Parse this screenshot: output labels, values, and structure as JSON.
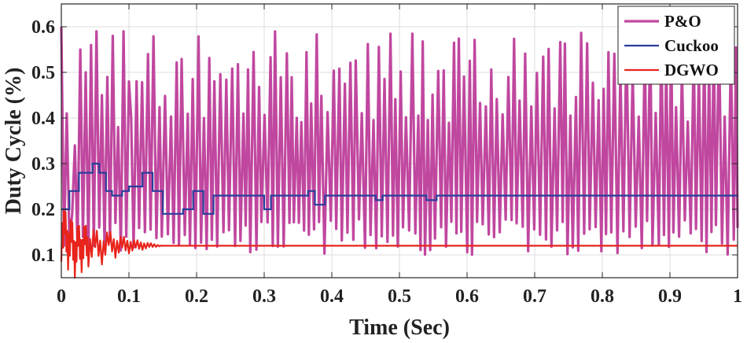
{
  "chart_data": {
    "type": "line",
    "title": "",
    "xlabel": "Time (Sec)",
    "ylabel": "Duty Cycle (%)",
    "xlim": [
      0,
      1
    ],
    "ylim": [
      0.05,
      0.65
    ],
    "x_ticks": [
      0,
      0.1,
      0.2,
      0.3,
      0.4,
      0.5,
      0.6,
      0.7,
      0.8,
      0.9,
      1
    ],
    "x_tick_labels": [
      "0",
      "0.1",
      "0.2",
      "0.3",
      "0.4",
      "0.5",
      "0.6",
      "0.7",
      "0.8",
      "0.9",
      "1"
    ],
    "y_ticks": [
      0.1,
      0.2,
      0.3,
      0.4,
      0.5,
      0.6
    ],
    "y_tick_labels": [
      "0.1",
      "0.2",
      "0.3",
      "0.4",
      "0.5",
      "0.6"
    ],
    "grid": true,
    "legend_position": "top-right",
    "series": [
      {
        "name": "P&O",
        "color": "#c0479f",
        "description": "fast oscillation between about 0.10 and 0.59 over the whole interval",
        "x": [
          0,
          0.004,
          0.008,
          0.012,
          0.016,
          0.02,
          0.024,
          0.028,
          0.032,
          0.036,
          0.04,
          0.044,
          0.048,
          0.052,
          0.056,
          0.06,
          0.064,
          0.068,
          0.072,
          0.076,
          0.08,
          0.084,
          0.088,
          0.092,
          0.096,
          0.1
        ],
        "y": [
          0.6,
          0.12,
          0.41,
          0.13,
          0.19,
          0.34,
          0.12,
          0.55,
          0.14,
          0.5,
          0.11,
          0.56,
          0.12,
          0.59,
          0.16,
          0.45,
          0.12,
          0.49,
          0.13,
          0.58,
          0.17,
          0.38,
          0.11,
          0.59,
          0.14,
          0.48
        ],
        "pattern_low": 0.1,
        "pattern_high": 0.59
      },
      {
        "name": "Cuckoo",
        "color": "#2b3d9a",
        "x": [
          0,
          0.012,
          0.012,
          0.026,
          0.026,
          0.046,
          0.046,
          0.056,
          0.056,
          0.066,
          0.066,
          0.075,
          0.075,
          0.09,
          0.09,
          0.1,
          0.1,
          0.12,
          0.12,
          0.135,
          0.135,
          0.15,
          0.15,
          0.18,
          0.18,
          0.195,
          0.195,
          0.21,
          0.21,
          0.225,
          0.225,
          0.3,
          0.3,
          0.31,
          0.31,
          0.365,
          0.365,
          0.375,
          0.375,
          0.39,
          0.39,
          0.465,
          0.465,
          0.475,
          0.475,
          0.54,
          0.54,
          0.555,
          0.555,
          1
        ],
        "y": [
          0.2,
          0.2,
          0.24,
          0.24,
          0.28,
          0.28,
          0.3,
          0.3,
          0.28,
          0.28,
          0.24,
          0.24,
          0.23,
          0.23,
          0.24,
          0.24,
          0.25,
          0.25,
          0.28,
          0.28,
          0.24,
          0.24,
          0.19,
          0.19,
          0.2,
          0.2,
          0.24,
          0.24,
          0.19,
          0.19,
          0.23,
          0.23,
          0.2,
          0.2,
          0.23,
          0.23,
          0.24,
          0.24,
          0.21,
          0.21,
          0.23,
          0.23,
          0.22,
          0.22,
          0.23,
          0.23,
          0.22,
          0.22,
          0.23,
          0.23
        ]
      },
      {
        "name": "DGWO",
        "color": "#e8241c",
        "description": "damped oscillation around 0.12, settling by about 0.15 s",
        "x": [
          0,
          0.005,
          0.01,
          0.015,
          0.02,
          0.025,
          0.03,
          0.035,
          0.04,
          0.05,
          0.06,
          0.07,
          0.08,
          0.09,
          0.1,
          0.11,
          0.12,
          0.13,
          0.14,
          0.15,
          1
        ],
        "y": [
          0.12,
          0.18,
          0.1,
          0.16,
          0.08,
          0.15,
          0.09,
          0.15,
          0.1,
          0.14,
          0.1,
          0.14,
          0.11,
          0.13,
          0.115,
          0.125,
          0.118,
          0.122,
          0.12,
          0.12,
          0.12
        ],
        "settle_value": 0.12
      }
    ]
  }
}
